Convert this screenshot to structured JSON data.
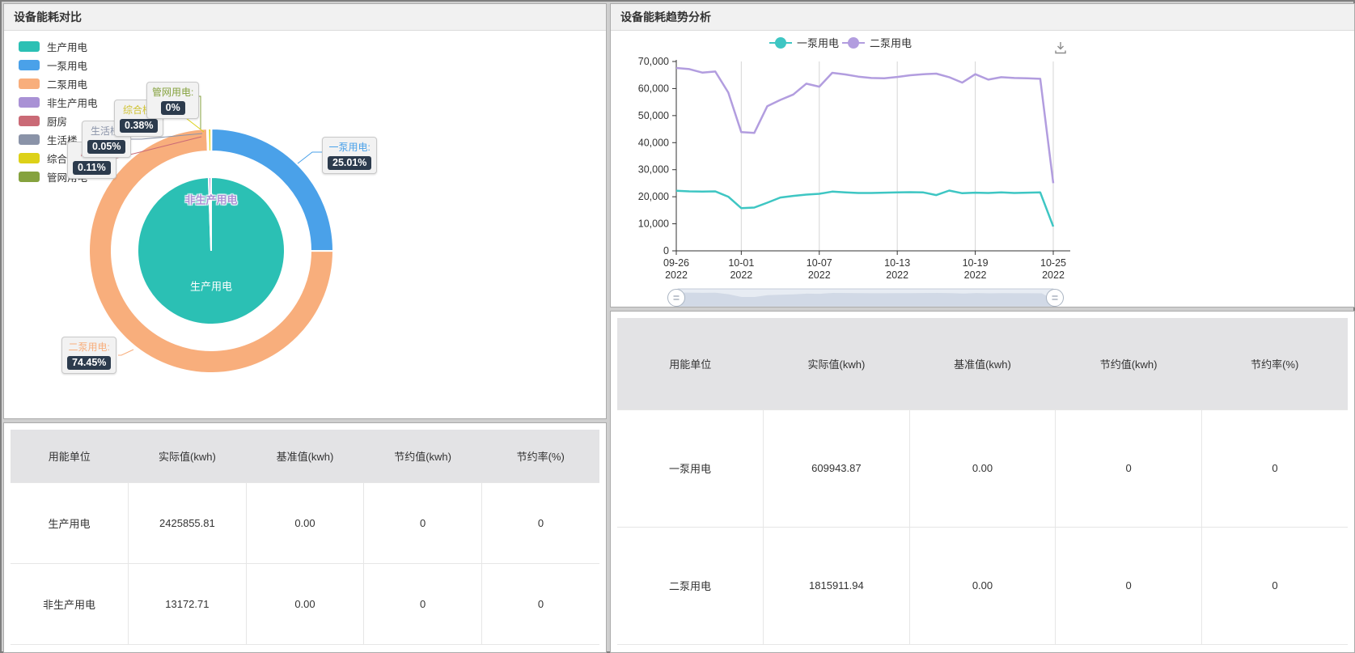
{
  "left_panel": {
    "title": "设备能耗对比"
  },
  "right_panel": {
    "title": "设备能耗趋势分析"
  },
  "icons": {
    "download": "download-arrow-into-tray"
  },
  "colors": {
    "teal": "#2bc0b4",
    "blue": "#4aa1e9",
    "orange": "#f8ae7c",
    "purple": "#a991d5",
    "red": "#ca6a76",
    "grayblue": "#8a93a8",
    "yellow": "#ddd118",
    "olive": "#85a23e",
    "line_teal": "#3ec6c3",
    "line_purple": "#b29ddf",
    "chip_bg": "#2c3b4d"
  },
  "chart_data": [
    {
      "type": "pie",
      "title": "设备能耗对比",
      "legend": [
        {
          "label": "生产用电",
          "color": "#2bc0b4"
        },
        {
          "label": "一泵用电",
          "color": "#4aa1e9"
        },
        {
          "label": "二泵用电",
          "color": "#f8ae7c"
        },
        {
          "label": "非生产用电",
          "color": "#a991d5"
        },
        {
          "label": "厨房",
          "color": "#ca6a76"
        },
        {
          "label": "生活楼",
          "color": "#8a93a8"
        },
        {
          "label": "综合楼",
          "color": "#ddd118"
        },
        {
          "label": "管网用电",
          "color": "#85a23e"
        }
      ],
      "inner_ring": [
        {
          "name": "生产用电",
          "value": 99.46,
          "color": "#2bc0b4"
        },
        {
          "name": "非生产用电",
          "value": 0.54,
          "color": "#a991d5"
        }
      ],
      "outer_ring": [
        {
          "name": "一泵用电",
          "value": 25.01,
          "color": "#4aa1e9"
        },
        {
          "name": "二泵用电",
          "value": 74.45,
          "color": "#f8ae7c"
        },
        {
          "name": "厨房",
          "value": 0.11,
          "color": "#ca6a76"
        },
        {
          "name": "生活楼",
          "value": 0.05,
          "color": "#8a93a8"
        },
        {
          "name": "综合楼",
          "value": 0.38,
          "color": "#ddd118"
        },
        {
          "name": "管网用电",
          "value": 0,
          "color": "#85a23e"
        }
      ],
      "callouts": [
        {
          "name": "管网用电:",
          "value": "0%",
          "color": "#85a23e"
        },
        {
          "name": "综合楼:",
          "value": "0.38%",
          "color": "#cfc232"
        },
        {
          "name": "生活楼:",
          "value": "0.05%",
          "color": "#8a93a8"
        },
        {
          "name": "厨房:",
          "value": "0.11%",
          "color": "#ca6a76"
        },
        {
          "name": "一泵用电:",
          "value": "25.01%",
          "color": "#4aa1e9"
        },
        {
          "name": "二泵用电:",
          "value": "74.45%",
          "color": "#f8ae7c"
        }
      ],
      "inner_labels": [
        {
          "text": "非生产用电",
          "color": "#a991d5"
        },
        {
          "text": "生产用电",
          "color": "#ffffff"
        }
      ]
    },
    {
      "type": "line",
      "title": "设备能耗趋势分析",
      "x": [
        "09-26",
        "09-27",
        "09-28",
        "09-29",
        "09-30",
        "10-01",
        "10-02",
        "10-03",
        "10-04",
        "10-05",
        "10-06",
        "10-07",
        "10-08",
        "10-09",
        "10-10",
        "10-11",
        "10-12",
        "10-13",
        "10-14",
        "10-15",
        "10-16",
        "10-17",
        "10-18",
        "10-19",
        "10-20",
        "10-21",
        "10-22",
        "10-23",
        "10-24",
        "10-25"
      ],
      "x_tick_indices": [
        0,
        5,
        11,
        17,
        23,
        29
      ],
      "x_tick_labels": [
        "09-26",
        "10-01",
        "10-07",
        "10-13",
        "10-19",
        "10-25"
      ],
      "tick_year": "2022",
      "ylim": [
        0,
        70000
      ],
      "y_tick_labels": [
        "0",
        "10,000",
        "20,000",
        "30,000",
        "40,000",
        "50,000",
        "60,000",
        "70,000"
      ],
      "grid": "vertical-only",
      "legend_position": "top",
      "series": [
        {
          "name": "一泵用电",
          "color": "#3ec6c3",
          "values": [
            22200,
            22000,
            21900,
            22000,
            20000,
            15800,
            16000,
            17800,
            19700,
            20300,
            20800,
            21100,
            21900,
            21600,
            21400,
            21400,
            21500,
            21600,
            21700,
            21600,
            20600,
            22300,
            21300,
            21500,
            21400,
            21600,
            21400,
            21500,
            21600,
            9000
          ]
        },
        {
          "name": "二泵用电",
          "color": "#b29ddf",
          "values": [
            67600,
            67200,
            65900,
            66300,
            58500,
            43900,
            43600,
            53500,
            55800,
            57800,
            61800,
            60700,
            65800,
            65200,
            64400,
            63900,
            63800,
            64300,
            64900,
            65300,
            65500,
            64200,
            62200,
            65300,
            63300,
            64200,
            63900,
            63800,
            63600,
            25000
          ]
        }
      ]
    }
  ],
  "left_table": {
    "headers": [
      "用能单位",
      "实际值(kwh)",
      "基准值(kwh)",
      "节约值(kwh)",
      "节约率(%)"
    ],
    "rows": [
      [
        "生产用电",
        "2425855.81",
        "0.00",
        "0",
        "0"
      ],
      [
        "非生产用电",
        "13172.71",
        "0.00",
        "0",
        "0"
      ]
    ]
  },
  "right_table": {
    "headers": [
      "用能单位",
      "实际值(kwh)",
      "基准值(kwh)",
      "节约值(kwh)",
      "节约率(%)"
    ],
    "rows": [
      [
        "一泵用电",
        "609943.87",
        "0.00",
        "0",
        "0"
      ],
      [
        "二泵用电",
        "1815911.94",
        "0.00",
        "0",
        "0"
      ]
    ]
  }
}
